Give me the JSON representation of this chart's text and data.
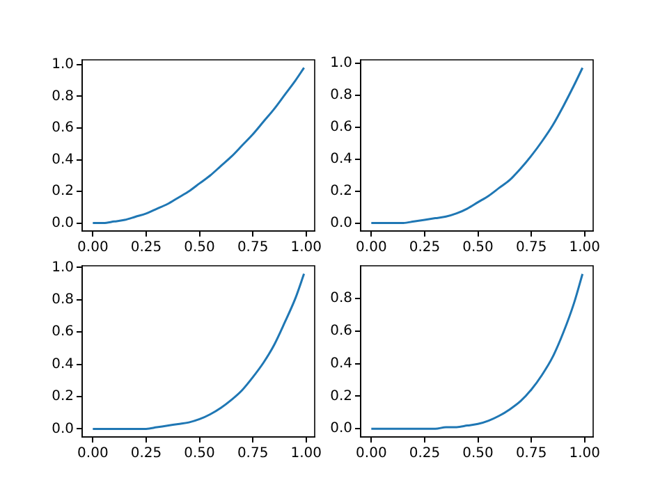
{
  "chart_data": [
    {
      "type": "line",
      "x": [
        0,
        0.05,
        0.1,
        0.15,
        0.2,
        0.25,
        0.3,
        0.35,
        0.4,
        0.45,
        0.5,
        0.55,
        0.6,
        0.65,
        0.7,
        0.75,
        0.8,
        0.85,
        0.9,
        0.95,
        0.99
      ],
      "series": [
        {
          "color": "#1f77b4",
          "values": [
            0,
            0,
            0.01,
            0.02,
            0.04,
            0.06,
            0.09,
            0.12,
            0.16,
            0.2,
            0.25,
            0.3,
            0.36,
            0.42,
            0.49,
            0.56,
            0.64,
            0.72,
            0.81,
            0.9,
            0.98
          ]
        }
      ],
      "xlim": [
        -0.05,
        1.04
      ],
      "xticks": [
        {
          "value": 0,
          "label": "0.00"
        },
        {
          "value": 0.25,
          "label": "0.25"
        },
        {
          "value": 0.5,
          "label": "0.50"
        },
        {
          "value": 0.75,
          "label": "0.75"
        },
        {
          "value": 1,
          "label": "1.00"
        }
      ],
      "ylim": [
        -0.05,
        1.03
      ],
      "yticks": [
        {
          "value": 0,
          "label": "0.0"
        },
        {
          "value": 0.2,
          "label": "0.2"
        },
        {
          "value": 0.4,
          "label": "0.4"
        },
        {
          "value": 0.6,
          "label": "0.6"
        },
        {
          "value": 0.8,
          "label": "0.8"
        },
        {
          "value": 1,
          "label": "1.0"
        }
      ]
    },
    {
      "type": "line",
      "x": [
        0,
        0.05,
        0.1,
        0.15,
        0.2,
        0.25,
        0.3,
        0.35,
        0.4,
        0.45,
        0.5,
        0.55,
        0.6,
        0.65,
        0.7,
        0.75,
        0.8,
        0.85,
        0.9,
        0.95,
        0.99
      ],
      "series": [
        {
          "color": "#1f77b4",
          "values": [
            0,
            0,
            0,
            0,
            0.01,
            0.02,
            0.03,
            0.04,
            0.06,
            0.09,
            0.13,
            0.17,
            0.22,
            0.27,
            0.34,
            0.42,
            0.51,
            0.61,
            0.73,
            0.86,
            0.97
          ]
        }
      ],
      "xlim": [
        -0.05,
        1.04
      ],
      "xticks": [
        {
          "value": 0,
          "label": "0.00"
        },
        {
          "value": 0.25,
          "label": "0.25"
        },
        {
          "value": 0.5,
          "label": "0.50"
        },
        {
          "value": 0.75,
          "label": "0.75"
        },
        {
          "value": 1,
          "label": "1.00"
        }
      ],
      "ylim": [
        -0.05,
        1.02
      ],
      "yticks": [
        {
          "value": 0,
          "label": "0.0"
        },
        {
          "value": 0.2,
          "label": "0.2"
        },
        {
          "value": 0.4,
          "label": "0.4"
        },
        {
          "value": 0.6,
          "label": "0.6"
        },
        {
          "value": 0.8,
          "label": "0.8"
        },
        {
          "value": 1,
          "label": "1.0"
        }
      ]
    },
    {
      "type": "line",
      "x": [
        0,
        0.05,
        0.1,
        0.15,
        0.2,
        0.25,
        0.3,
        0.35,
        0.4,
        0.45,
        0.5,
        0.55,
        0.6,
        0.65,
        0.7,
        0.75,
        0.8,
        0.85,
        0.9,
        0.95,
        0.99
      ],
      "series": [
        {
          "color": "#1f77b4",
          "values": [
            0,
            0,
            0,
            0,
            0,
            0,
            0.01,
            0.02,
            0.03,
            0.04,
            0.06,
            0.09,
            0.13,
            0.18,
            0.24,
            0.32,
            0.41,
            0.52,
            0.66,
            0.81,
            0.96
          ]
        }
      ],
      "xlim": [
        -0.05,
        1.04
      ],
      "xticks": [
        {
          "value": 0,
          "label": "0.00"
        },
        {
          "value": 0.25,
          "label": "0.25"
        },
        {
          "value": 0.5,
          "label": "0.50"
        },
        {
          "value": 0.75,
          "label": "0.75"
        },
        {
          "value": 1,
          "label": "1.00"
        }
      ],
      "ylim": [
        -0.05,
        1.01
      ],
      "yticks": [
        {
          "value": 0,
          "label": "0.0"
        },
        {
          "value": 0.2,
          "label": "0.2"
        },
        {
          "value": 0.4,
          "label": "0.4"
        },
        {
          "value": 0.6,
          "label": "0.6"
        },
        {
          "value": 0.8,
          "label": "0.8"
        },
        {
          "value": 1,
          "label": "1.0"
        }
      ]
    },
    {
      "type": "line",
      "x": [
        0,
        0.05,
        0.1,
        0.15,
        0.2,
        0.25,
        0.3,
        0.35,
        0.4,
        0.45,
        0.5,
        0.55,
        0.6,
        0.65,
        0.7,
        0.75,
        0.8,
        0.85,
        0.9,
        0.95,
        0.99
      ],
      "series": [
        {
          "color": "#1f77b4",
          "values": [
            0,
            0,
            0,
            0,
            0,
            0,
            0,
            0.01,
            0.01,
            0.02,
            0.03,
            0.05,
            0.08,
            0.12,
            0.17,
            0.24,
            0.33,
            0.44,
            0.59,
            0.77,
            0.95
          ]
        }
      ],
      "xlim": [
        -0.05,
        1.04
      ],
      "xticks": [
        {
          "value": 0,
          "label": "0.00"
        },
        {
          "value": 0.25,
          "label": "0.25"
        },
        {
          "value": 0.5,
          "label": "0.50"
        },
        {
          "value": 0.75,
          "label": "0.75"
        },
        {
          "value": 1,
          "label": "1.00"
        }
      ],
      "ylim": [
        -0.05,
        1.0
      ],
      "yticks": [
        {
          "value": 0,
          "label": "0.0"
        },
        {
          "value": 0.2,
          "label": "0.2"
        },
        {
          "value": 0.4,
          "label": "0.4"
        },
        {
          "value": 0.6,
          "label": "0.6"
        },
        {
          "value": 0.8,
          "label": "0.8"
        }
      ]
    }
  ]
}
